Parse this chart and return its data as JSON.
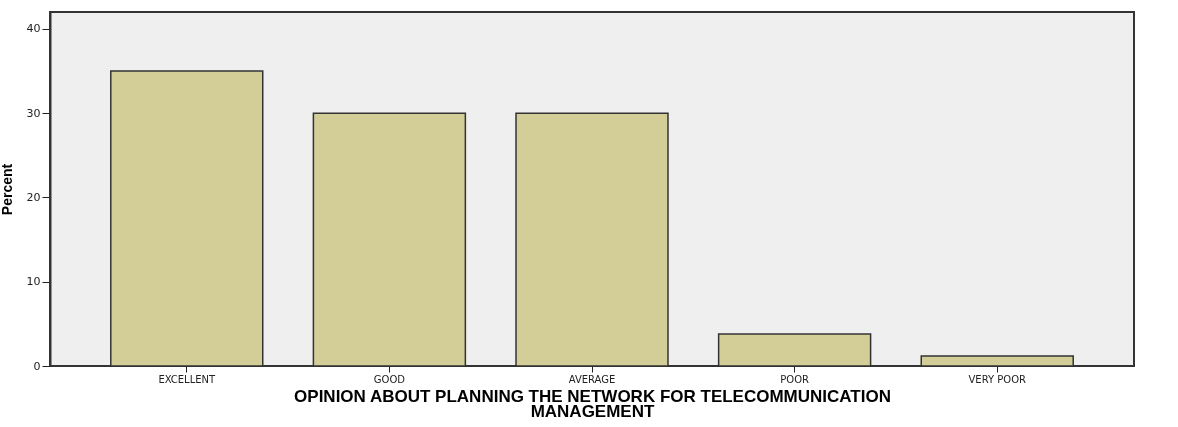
{
  "chart_data": {
    "type": "bar",
    "xlabel": "OPINION ABOUT PLANNING THE NETWORK FOR TELECOMMUNICATION MANAGEMENT",
    "ylabel": "Percent",
    "categories": [
      "EXCELLENT",
      "GOOD",
      "AVERAGE",
      "POOR",
      "VERY POOR"
    ],
    "values": [
      35,
      30,
      30,
      3.8,
      1.2
    ],
    "color": "#d3ce97",
    "ylim": [
      0,
      42
    ],
    "yticks": [
      0,
      10,
      20,
      30,
      40
    ]
  }
}
